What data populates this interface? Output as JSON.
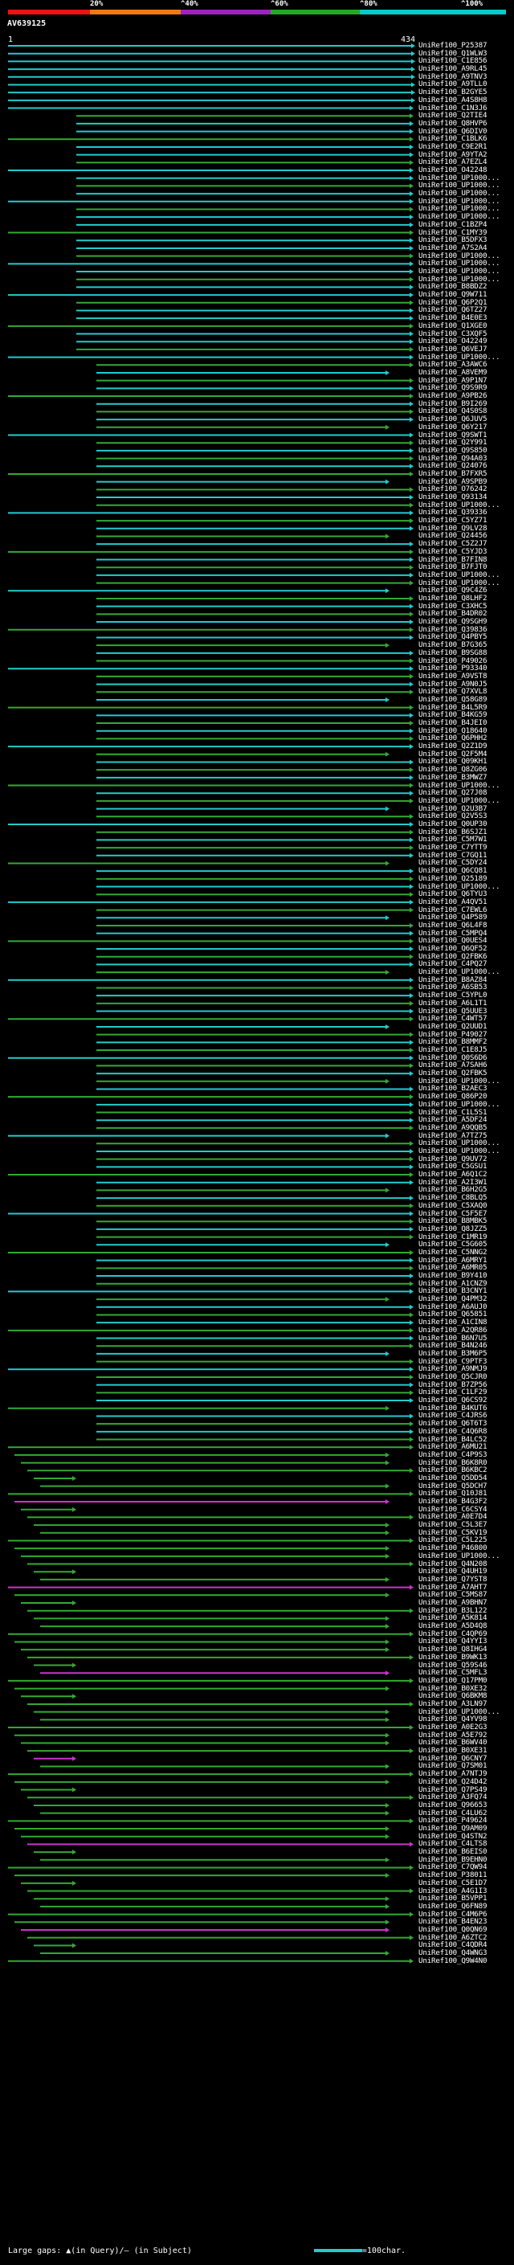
{
  "scale": {
    "ticks": [
      "20%",
      "^40%",
      "^60%",
      "^80%",
      "^100%"
    ],
    "colors": [
      "#ee1111",
      "#f07a10",
      "#a020c0",
      "#22aa22",
      "#00cccc"
    ]
  },
  "query": {
    "name": "AV639125",
    "start": "1",
    "end": "434"
  },
  "hits": [
    "UniRef100_P25387",
    "UniRef100_Q1WLW3",
    "UniRef100_C1E856",
    "UniRef100_A9RL45",
    "UniRef100_A9TNV3",
    "UniRef100_A9TLL0",
    "UniRef100_B2GYE5",
    "UniRef100_A4S8H8",
    "UniRef100_C1N3J6",
    "UniRef100_Q2TIE4",
    "UniRef100_Q8HVP6",
    "UniRef100_Q6DIV0",
    "UniRef100_C1BLK6",
    "UniRef100_C9E2R1",
    "UniRef100_A9YTA2",
    "UniRef100_A7EZL4",
    "UniRef100_O42248",
    "UniRef100_UP1000...",
    "UniRef100_UP1000...",
    "UniRef100_UP1000...",
    "UniRef100_UP1000...",
    "UniRef100_UP1000...",
    "UniRef100_UP1000...",
    "UniRef100_C1BZP4",
    "UniRef100_C1MY39",
    "UniRef100_B5DFX3",
    "UniRef100_A7S2A4",
    "UniRef100_UP1000...",
    "UniRef100_UP1000...",
    "UniRef100_UP1000...",
    "UniRef100_UP1000...",
    "UniRef100_B8BDZ2",
    "UniRef100_Q9W711",
    "UniRef100_Q6P2Q1",
    "UniRef100_Q6TZ27",
    "UniRef100_B4E0E3",
    "UniRef100_Q1XGE0",
    "UniRef100_C3XQF5",
    "UniRef100_O42249",
    "UniRef100_Q6VEJ7",
    "UniRef100_UP1000...",
    "UniRef100_A3AWC6",
    "UniRef100_A8VEM9",
    "UniRef100_A9P1N7",
    "UniRef100_Q9S9R9",
    "UniRef100_A9PB26",
    "UniRef100_B9I269",
    "UniRef100_Q4S0S8",
    "UniRef100_Q6JUV5",
    "UniRef100_Q6Y217",
    "UniRef100_Q9SWT1",
    "UniRef100_Q2Y991",
    "UniRef100_Q9S850",
    "UniRef100_Q94A03",
    "UniRef100_Q24076",
    "UniRef100_B7FXR5",
    "UniRef100_A9SPB9",
    "UniRef100_O76242",
    "UniRef100_Q93134",
    "UniRef100_UP1000...",
    "UniRef100_Q39336",
    "UniRef100_C5YZ71",
    "UniRef100_Q9LV28",
    "UniRef100_Q24456",
    "UniRef100_C5Z2J7",
    "UniRef100_C5YJD3",
    "UniRef100_B7FIN8",
    "UniRef100_B7FJT0",
    "UniRef100_UP1000...",
    "UniRef100_UP1000...",
    "UniRef100_Q9C4Z6",
    "UniRef100_Q8LHF2",
    "UniRef100_C3XHC5",
    "UniRef100_B4DR02",
    "UniRef100_Q9SGH9",
    "UniRef100_Q39836",
    "UniRef100_Q4PBY5",
    "UniRef100_B7G365",
    "UniRef100_B9SG88",
    "UniRef100_P49026",
    "UniRef100_P93340",
    "UniRef100_A9VST8",
    "UniRef100_A9N0J5",
    "UniRef100_Q7XVL8",
    "UniRef100_Q58G89",
    "UniRef100_B4L5R9",
    "UniRef100_B4KG59",
    "UniRef100_B4JEI0",
    "UniRef100_Q18640",
    "UniRef100_Q6PHH2",
    "UniRef100_Q2Z1D9",
    "UniRef100_Q2F5M4",
    "UniRef100_Q09KH1",
    "UniRef100_Q8ZG06",
    "UniRef100_B3MWZ7",
    "UniRef100_UP1000...",
    "UniRef100_Q27J08",
    "UniRef100_UP1000...",
    "UniRef100_Q2U3B7",
    "UniRef100_Q2V5S3",
    "UniRef100_Q0UP30",
    "UniRef100_B6SJZ1",
    "UniRef100_C5M7W1",
    "UniRef100_C7YTT9",
    "UniRef100_C7GQ11",
    "UniRef100_C5DY24",
    "UniRef100_Q6CQ81",
    "UniRef100_Q25189",
    "UniRef100_UP1000...",
    "UniRef100_Q6TYU3",
    "UniRef100_A4QV51",
    "UniRef100_C7EWL6",
    "UniRef100_Q4P589",
    "UniRef100_Q6L4F8",
    "UniRef100_C5MPQ4",
    "UniRef100_Q0UES4",
    "UniRef100_Q6QF52",
    "UniRef100_Q2FBK6",
    "UniRef100_C4PQ27",
    "UniRef100_UP1000...",
    "UniRef100_B8AZ84",
    "UniRef100_A6SB53",
    "UniRef100_C5YPL0",
    "UniRef100_A6L1T1",
    "UniRef100_Q5UUE3",
    "UniRef100_C4WT57",
    "UniRef100_Q2UUD1",
    "UniRef100_P49027",
    "UniRef100_B8MMF2",
    "UniRef100_C1E8J5",
    "UniRef100_Q0S6D6",
    "UniRef100_A7SAH6",
    "UniRef100_Q2FBK5",
    "UniRef100_UP1000...",
    "UniRef100_B2AEC3",
    "UniRef100_Q86P20",
    "UniRef100_UP1000...",
    "UniRef100_C1L5S1",
    "UniRef100_A5DF24",
    "UniRef100_A9QQB5",
    "UniRef100_A7TZ75",
    "UniRef100_UP1000...",
    "UniRef100_UP1000...",
    "UniRef100_Q9UV72",
    "UniRef100_C5GSU1",
    "UniRef100_A6Q1C2",
    "UniRef100_A2I3W1",
    "UniRef100_B6H2G5",
    "UniRef100_C8BLQ5",
    "UniRef100_C5XAQ0",
    "UniRef100_C5F5E7",
    "UniRef100_B8MBK5",
    "UniRef100_Q8JZZ5",
    "UniRef100_C1MR19",
    "UniRef100_C5G605",
    "UniRef100_C5NNG2",
    "UniRef100_A6MRY1",
    "UniRef100_A6MR05",
    "UniRef100_B9Y410",
    "UniRef100_A1CNZ9",
    "UniRef100_B3CNY1",
    "UniRef100_Q4PM32",
    "UniRef100_A6AUJ0",
    "UniRef100_Q65851",
    "UniRef100_A1CIN8",
    "UniRef100_A2QR86",
    "UniRef100_B6N7U5",
    "UniRef100_B4N246",
    "UniRef100_B3M6P5",
    "UniRef100_C9PTF3",
    "UniRef100_A9NMJ9",
    "UniRef100_Q5CJR0",
    "UniRef100_B7ZP56",
    "UniRef100_C1LF29",
    "UniRef100_Q6CS92",
    "UniRef100_B4KUT6",
    "UniRef100_C4JRS6",
    "UniRef100_Q6T6T3",
    "UniRef100_C4Q6R8",
    "UniRef100_B4LC52",
    "UniRef100_A6MU21",
    "UniRef100_C4P9S3",
    "UniRef100_B6K8R0",
    "UniRef100_B6KBC2",
    "UniRef100_Q5DD54",
    "UniRef100_Q5DCH7",
    "UniRef100_Q10J81",
    "UniRef100_B4G3F2",
    "UniRef100_C6CSY4",
    "UniRef100_A0E7D4",
    "UniRef100_C5L3E7",
    "UniRef100_C5KV19",
    "UniRef100_C5L225",
    "UniRef100_P46800",
    "UniRef100_UP1000...",
    "UniRef100_Q4N208",
    "UniRef100_Q4UH19",
    "UniRef100_Q7YST8",
    "UniRef100_A7AHT7",
    "UniRef100_C5MS87",
    "UniRef100_A9BHN7",
    "UniRef100_B3L122",
    "UniRef100_A5K814",
    "UniRef100_A5D4Q8",
    "UniRef100_C4QP69",
    "UniRef100_Q4YYI3",
    "UniRef100_Q8IHG4",
    "UniRef100_B9WK13",
    "UniRef100_Q59S46",
    "UniRef100_C5MFL3",
    "UniRef100_Q17PM0",
    "UniRef100_B0XE32",
    "UniRef100_Q6BKM8",
    "UniRef100_A3LN97",
    "UniRef100_UP1000...",
    "UniRef100_Q4YV98",
    "UniRef100_A0E2G3",
    "UniRef100_A5E792",
    "UniRef100_B6WV40",
    "UniRef100_B0XE31",
    "UniRef100_Q6CNY7",
    "UniRef100_Q7SM01",
    "UniRef100_A7NTJ9",
    "UniRef100_Q24D42",
    "UniRef100_Q7PS49",
    "UniRef100_A3FQ74",
    "UniRef100_Q96653",
    "UniRef100_C4LU62",
    "UniRef100_P49624",
    "UniRef100_Q9AM09",
    "UniRef100_Q4STN2",
    "UniRef100_C4LTS8",
    "UniRef100_B6EIS0",
    "UniRef100_B9EHN0",
    "UniRef100_C7QW94",
    "UniRef100_P38011",
    "UniRef100_C5E1D7",
    "UniRef100_A4G1I3",
    "UniRef100_B5VPP1",
    "UniRef100_Q6FN89",
    "UniRef100_C4M6P6",
    "UniRef100_B4EN23",
    "UniRef100_Q0QN69",
    "UniRef100_A6ZTC2",
    "UniRef100_C4QDR4",
    "UniRef100_Q4WNG3",
    "UniRef100_Q9W4N0"
  ],
  "legend": {
    "large_gaps": "Large gaps:",
    "in_query": "(in Query)",
    "slash": "/",
    "in_subject": "(in Subject)",
    "per_char": "=100char."
  }
}
